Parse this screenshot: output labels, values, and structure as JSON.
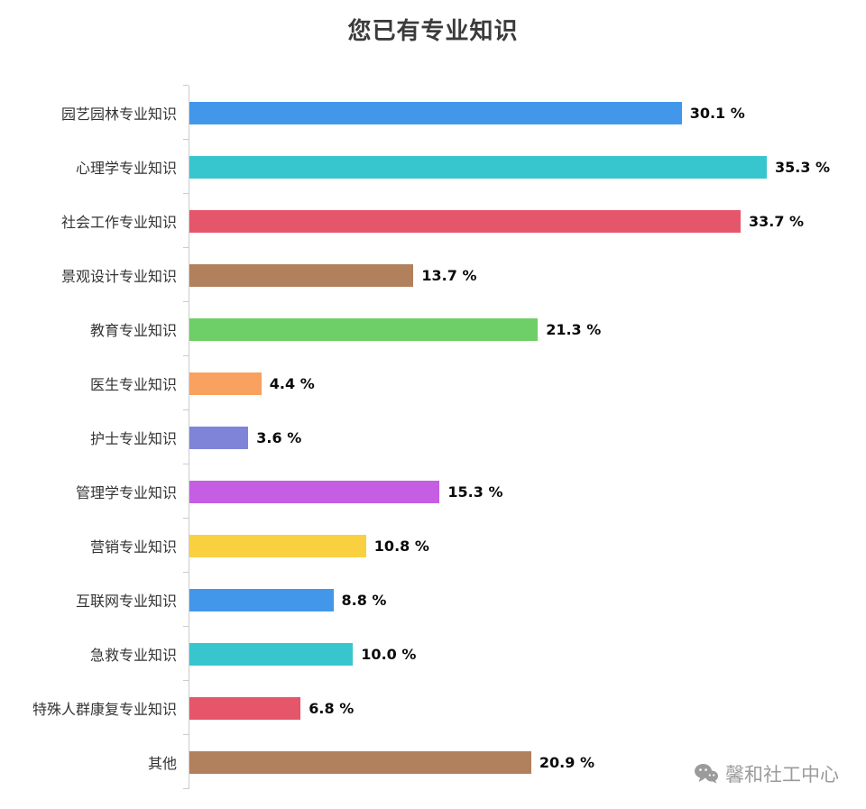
{
  "watermark": {
    "label": "馨和社工中心",
    "icon": "wechat-icon"
  },
  "chart_data": {
    "type": "bar",
    "orientation": "horizontal",
    "title": "您已有专业知识",
    "categories": [
      "园艺园林专业知识",
      "心理学专业知识",
      "社会工作专业知识",
      "景观设计专业知识",
      "教育专业知识",
      "医生专业知识",
      "护士专业知识",
      "管理学专业知识",
      "营销专业知识",
      "互联网专业知识",
      "急救专业知识",
      "特殊人群康复专业知识",
      "其他"
    ],
    "values": [
      30.1,
      35.3,
      33.7,
      13.7,
      21.3,
      4.4,
      3.6,
      15.3,
      10.8,
      8.8,
      10.0,
      6.8,
      20.9
    ],
    "value_labels": [
      "30.1 %",
      "35.3 %",
      "33.7 %",
      "13.7 %",
      "21.3 %",
      "4.4 %",
      "3.6 %",
      "15.3 %",
      "10.8 %",
      "8.8 %",
      "10.0 %",
      "6.8 %",
      "20.9 %"
    ],
    "colors": [
      "#4397EB",
      "#38C6CE",
      "#E5566B",
      "#B1805C",
      "#6ECE67",
      "#F9A15E",
      "#7F84D8",
      "#C55EE3",
      "#F9D140",
      "#4397EB",
      "#38C6CE",
      "#E5566B",
      "#B1805C"
    ],
    "xlabel": "",
    "ylabel": "",
    "grid": false,
    "legend": false,
    "axis_color": "#cccccc"
  }
}
